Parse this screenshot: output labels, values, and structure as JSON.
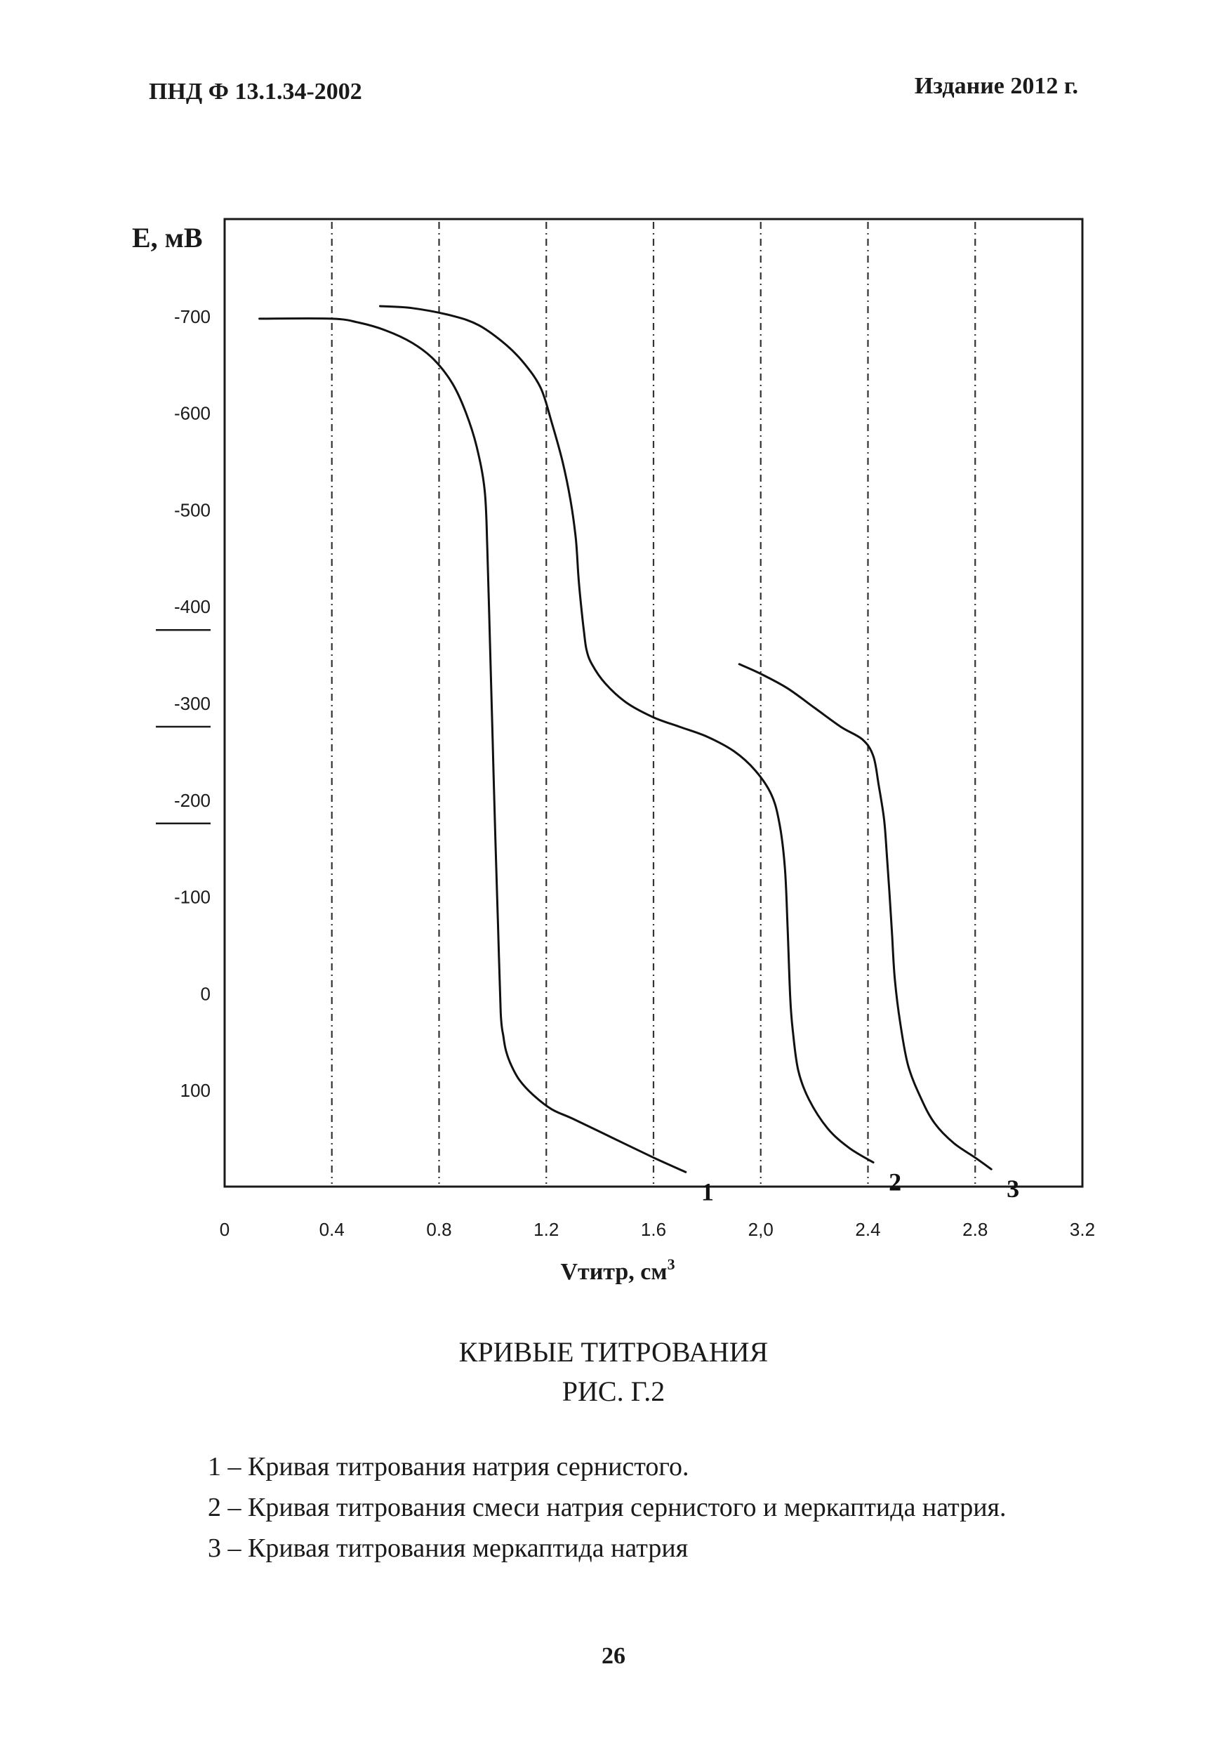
{
  "header": {
    "doc_code": "ПНД Ф 13.1.34-2002",
    "edition": "Издание 2012 г."
  },
  "chart_data": {
    "type": "line",
    "ylabel": "E, мВ",
    "xlabel": "Vтитр, см",
    "xlabel_superscript": "3",
    "x_ticks": [
      "0",
      "0.4",
      "0.8",
      "1.2",
      "1.6",
      "2,0",
      "2.4",
      "2.8",
      "3.2"
    ],
    "x_tick_values": [
      0,
      0.4,
      0.8,
      1.2,
      1.6,
      2.0,
      2.4,
      2.8,
      3.2
    ],
    "y_ticks": [
      "-700",
      "-600",
      "-500",
      "-400",
      "-300",
      "-200",
      "-100",
      "0",
      "100"
    ],
    "y_tick_values": [
      -700,
      -600,
      -500,
      -400,
      -300,
      -200,
      -100,
      0,
      100
    ],
    "underlined_y_ticks": [
      "-400",
      "-300",
      "-200"
    ],
    "xlim": [
      0,
      3.2
    ],
    "ylim": [
      -800,
      200
    ],
    "y_axis_reversed": true,
    "grid": "vertical dashed lines at x ticks",
    "series": [
      {
        "name": "1",
        "label_position": "end",
        "x": [
          0.13,
          0.4,
          0.5,
          0.6,
          0.7,
          0.78,
          0.85,
          0.9,
          0.94,
          0.97,
          0.98,
          0.99,
          1.0,
          1.01,
          1.02,
          1.03,
          1.04,
          1.05,
          1.07,
          1.1,
          1.15,
          1.22,
          1.3,
          1.45,
          1.6,
          1.72
        ],
        "y": [
          -697,
          -697,
          -693,
          -685,
          -672,
          -655,
          -630,
          -600,
          -565,
          -520,
          -460,
          -360,
          -260,
          -160,
          -70,
          20,
          45,
          60,
          75,
          90,
          105,
          120,
          130,
          150,
          170,
          185
        ]
      },
      {
        "name": "2",
        "label_position": "end",
        "x": [
          0.58,
          0.7,
          0.85,
          0.95,
          1.05,
          1.12,
          1.18,
          1.22,
          1.26,
          1.29,
          1.31,
          1.32,
          1.33,
          1.34,
          1.35,
          1.37,
          1.42,
          1.5,
          1.6,
          1.7,
          1.8,
          1.9,
          1.98,
          2.04,
          2.07,
          2.09,
          2.1,
          2.11,
          2.12,
          2.14,
          2.18,
          2.25,
          2.33,
          2.42
        ],
        "y": [
          -710,
          -708,
          -700,
          -690,
          -670,
          -650,
          -625,
          -590,
          -550,
          -510,
          -470,
          -430,
          -400,
          -375,
          -355,
          -340,
          -320,
          -300,
          -285,
          -275,
          -265,
          -250,
          -230,
          -205,
          -175,
          -130,
          -70,
          5,
          40,
          80,
          110,
          140,
          160,
          175
        ]
      },
      {
        "name": "3",
        "label_position": "end",
        "x": [
          1.92,
          2.0,
          2.1,
          2.2,
          2.3,
          2.38,
          2.42,
          2.44,
          2.46,
          2.47,
          2.48,
          2.49,
          2.5,
          2.52,
          2.55,
          2.6,
          2.65,
          2.72,
          2.8,
          2.86
        ],
        "y": [
          -340,
          -330,
          -315,
          -295,
          -275,
          -262,
          -245,
          -215,
          -180,
          -145,
          -105,
          -60,
          -15,
          30,
          75,
          110,
          135,
          155,
          170,
          182
        ]
      }
    ]
  },
  "caption": {
    "title": "КРИВЫЕ ТИТРОВАНИЯ",
    "figure": "РИС. Г.2"
  },
  "legend": [
    "1 – Кривая титрования натрия сернистого.",
    "2 – Кривая титрования смеси натрия сернистого и меркаптида натрия.",
    "3 – Кривая титрования меркаптида натрия"
  ],
  "page_number": "26"
}
